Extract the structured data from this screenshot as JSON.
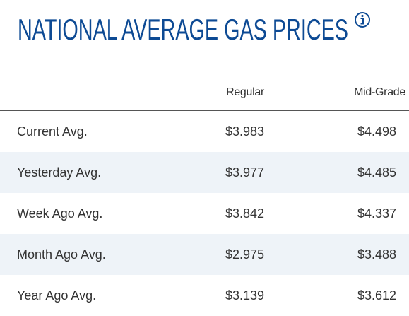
{
  "header": {
    "title": "NATIONAL AVERAGE GAS PRICES"
  },
  "table": {
    "columns": [
      "Regular",
      "Mid-Grade"
    ],
    "rows": [
      [
        "Current Avg.",
        "$3.983",
        "$4.498"
      ],
      [
        "Yesterday Avg.",
        "$3.977",
        "$4.485"
      ],
      [
        "Week Ago Avg.",
        "$3.842",
        "$4.337"
      ],
      [
        "Month Ago Avg.",
        "$2.975",
        "$3.488"
      ],
      [
        "Year Ago Avg.",
        "$3.139",
        "$3.612"
      ]
    ]
  }
}
